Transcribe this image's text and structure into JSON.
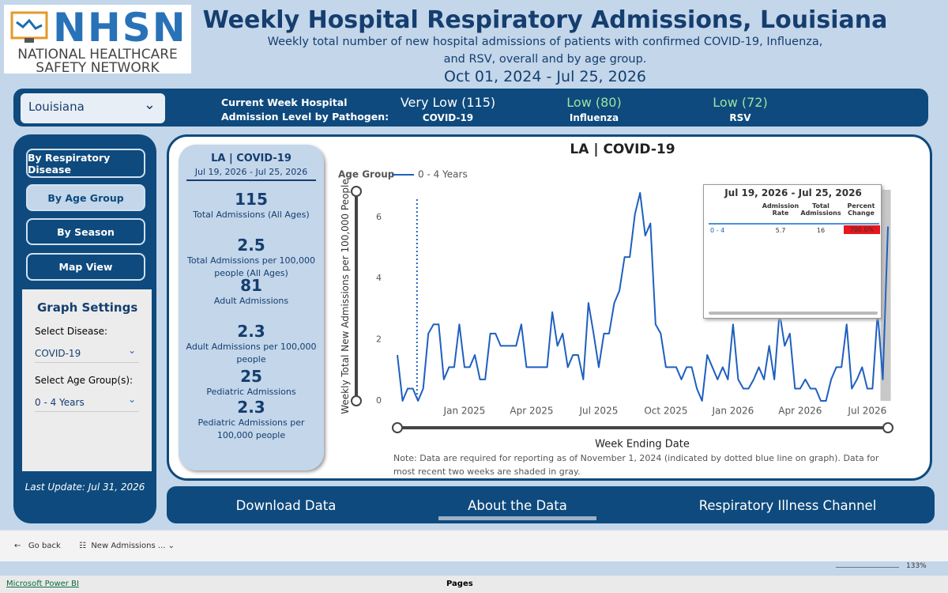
{
  "header": {
    "logo": {
      "acronym": "NHSN",
      "line1": "NATIONAL HEALTHCARE",
      "line2": "SAFETY NETWORK"
    },
    "title": "Weekly Hospital Respiratory Admissions, Louisiana",
    "subtitle_lines": [
      "Weekly total number of new hospital admissions of patients with confirmed COVID-19, Influenza,",
      "and RSV, overall and by age group."
    ],
    "date_range": "Oct 01, 2024 - Jul 25, 2026"
  },
  "banner": {
    "location": "Louisiana",
    "level_label_lines": [
      "Current Week Hospital",
      "Admission Level by Pathogen:"
    ],
    "levels": [
      {
        "level": "Very Low (115)",
        "pathogen": "COVID-19"
      },
      {
        "level": "Low (80)",
        "pathogen": "Influenza"
      },
      {
        "level": "Low (72)",
        "pathogen": "RSV"
      }
    ]
  },
  "nav": {
    "buttons": [
      "By Respiratory Disease",
      "By Age Group",
      "By Season",
      "Map View"
    ],
    "settings": {
      "title": "Graph Settings",
      "disease_label": "Select Disease:",
      "disease": "COVID-19",
      "age_label": "Select Age Group(s):",
      "age": "0 - 4 Years"
    },
    "last_update": "Last Update: Jul 31, 2026"
  },
  "summary": {
    "title": "LA | COVID-19",
    "period": "Jul 19, 2026 - Jul 25, 2026",
    "stats": [
      {
        "value": 115,
        "label": "Total Admissions (All Ages)"
      },
      {
        "value": 2.5,
        "label": "Total Admissions per 100,000 people (All Ages)"
      },
      {
        "value": 81,
        "label": "Adult Admissions"
      },
      {
        "value": 2.3,
        "label": "Adult Admissions per 100,000 people"
      },
      {
        "value": 25,
        "label": "Pediatric Admissions"
      },
      {
        "value": 2.3,
        "label": "Pediatric Admissions per 100,000 people"
      }
    ]
  },
  "chart_data": {
    "type": "line",
    "title": "LA | COVID-19",
    "legend_title": "Age Group",
    "x_label": "Week Ending Date",
    "y_label": "Weekly Total New Admissions per 100,000 People",
    "note": "Note: Data are required for reporting as of November 1, 2024 (indicated by dotted blue line on graph). Data for most recent two weeks are shaded in gray.",
    "categories": [
      null,
      null,
      null,
      null,
      null,
      null,
      null,
      null,
      null,
      null,
      null,
      null,
      null,
      "Jan 2025",
      null,
      null,
      null,
      null,
      null,
      null,
      null,
      null,
      null,
      null,
      null,
      null,
      "Apr 2025",
      null,
      null,
      null,
      null,
      null,
      null,
      null,
      null,
      null,
      null,
      null,
      null,
      "Jul 2025",
      null,
      null,
      null,
      null,
      null,
      null,
      null,
      null,
      null,
      null,
      null,
      null,
      "Oct 2025",
      null,
      null,
      null,
      null,
      null,
      null,
      null,
      null,
      null,
      null,
      null,
      null,
      "Jan 2026",
      null,
      null,
      null,
      null,
      null,
      null,
      null,
      null,
      null,
      null,
      null,
      null,
      "Apr 2026",
      null,
      null,
      null,
      null,
      null,
      null,
      null,
      null,
      null,
      null,
      null,
      null,
      "Jul 2026",
      null,
      null,
      null,
      null
    ],
    "series": [
      {
        "name": "0 - 4 Years",
        "color": "#1f5fbf",
        "values": [
          1.5,
          0,
          0.4,
          0.4,
          0,
          0.4,
          2.2,
          2.5,
          2.5,
          0.7,
          1.1,
          1.1,
          2.5,
          1.1,
          1.1,
          1.5,
          0.7,
          0.7,
          2.2,
          2.2,
          1.8,
          1.8,
          1.8,
          1.8,
          2.5,
          1.1,
          1.1,
          1.1,
          1.1,
          1.1,
          2.9,
          1.8,
          2.2,
          1.1,
          1.5,
          1.5,
          0.7,
          3.2,
          2.2,
          1.1,
          2.2,
          2.2,
          3.2,
          3.6,
          4.7,
          4.7,
          6.1,
          6.8,
          5.4,
          5.8,
          2.5,
          2.2,
          1.1,
          1.1,
          1.1,
          0.7,
          1.1,
          1.1,
          0.4,
          0,
          1.5,
          1.1,
          0.7,
          1.1,
          0.7,
          2.5,
          0.7,
          0.4,
          0.4,
          0.7,
          1.1,
          0.7,
          1.8,
          0.7,
          2.9,
          1.8,
          2.2,
          0.4,
          0.4,
          0.7,
          0.4,
          0.4,
          0,
          0,
          0.7,
          1.1,
          1.1,
          2.5,
          0.4,
          0.7,
          1.1,
          0.4,
          0.4,
          2.9,
          0.7,
          5.7
        ]
      }
    ],
    "ylim": [
      0,
      6.9
    ],
    "yticks": [
      0,
      2,
      4,
      6
    ],
    "grid": false
  },
  "tooltip": {
    "title": "Jul 19, 2026 - Jul 25, 2026",
    "columns": [
      "Admission Rate",
      "Total Admissions",
      "Percent Change"
    ],
    "row": [
      "0 - 4",
      "5.7",
      "16",
      "700.0%"
    ]
  },
  "links": [
    "Download Data",
    "About the Data",
    "Respiratory Illness Channel"
  ],
  "app_bar": {
    "back": "Go back",
    "page": "New Admissions ...",
    "brand": "Microsoft Power BI",
    "pages": "Pages",
    "zoom": "133%"
  }
}
